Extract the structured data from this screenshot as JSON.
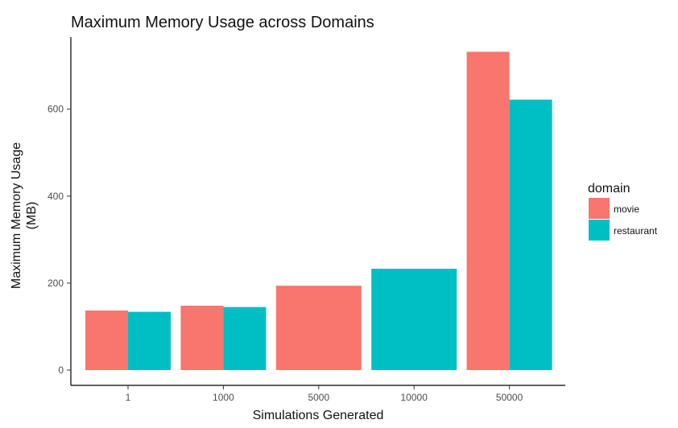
{
  "chart_data": {
    "type": "bar",
    "title": "Maximum Memory Usage across Domains",
    "xlabel": "Simulations Generated",
    "ylabel_line1": "Maximum Memory Usage",
    "ylabel_line2": "(MB)",
    "categories": [
      "1",
      "1000",
      "5000",
      "10000",
      "50000"
    ],
    "ylim": [
      0,
      760
    ],
    "yticks": [
      0,
      200,
      400,
      600
    ],
    "grid": false,
    "legend": {
      "title": "domain",
      "placement": "right",
      "entries": [
        "movie",
        "restaurant"
      ]
    },
    "colors": {
      "movie": "#F8766D",
      "restaurant": "#00BFC4"
    },
    "bars": [
      {
        "category": "1",
        "series": "movie",
        "value": 137,
        "dodge": "left"
      },
      {
        "category": "1",
        "series": "restaurant",
        "value": 134,
        "dodge": "right"
      },
      {
        "category": "1000",
        "series": "movie",
        "value": 148,
        "dodge": "left"
      },
      {
        "category": "1000",
        "series": "restaurant",
        "value": 145,
        "dodge": "right"
      },
      {
        "category": "5000",
        "series": "movie",
        "value": 194,
        "dodge": "full"
      },
      {
        "category": "10000",
        "series": "restaurant",
        "value": 233,
        "dodge": "full"
      },
      {
        "category": "50000",
        "series": "movie",
        "value": 732,
        "dodge": "left"
      },
      {
        "category": "50000",
        "series": "restaurant",
        "value": 622,
        "dodge": "right"
      }
    ]
  }
}
